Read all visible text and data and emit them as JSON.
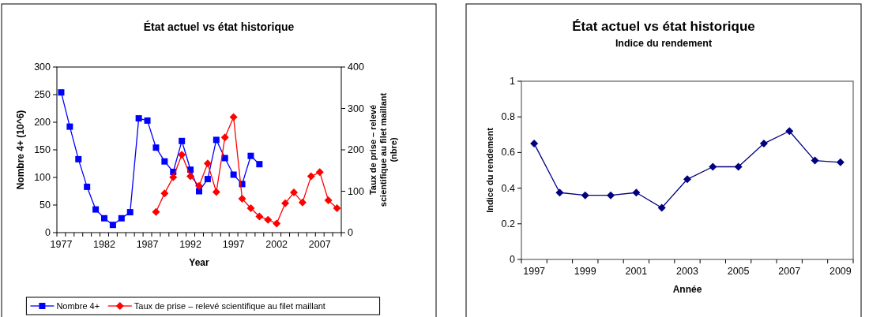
{
  "chart_data": [
    {
      "type": "line",
      "title": "État actuel vs état historique",
      "xlabel": "Year",
      "ylabel": "Nombre 4+ (10^6)",
      "y2label": "Taux de prise – relevé scientifique au filet maillant (nbre)",
      "categories": [
        "1977",
        null,
        null,
        null,
        null,
        "1982",
        null,
        null,
        null,
        null,
        "1987",
        null,
        null,
        null,
        null,
        "1992",
        null,
        null,
        null,
        null,
        "1997",
        null,
        null,
        null,
        null,
        "2002",
        null,
        null,
        null,
        null,
        "2007",
        null,
        null
      ],
      "series": [
        {
          "name": "Nombre 4+",
          "color": "#0000ff",
          "marker": "square",
          "values": [
            254,
            192,
            133,
            83,
            42,
            26,
            14,
            26,
            37,
            207,
            203,
            154,
            129,
            110,
            166,
            114,
            75,
            97,
            168,
            135,
            105,
            88,
            139,
            124,
            null,
            null,
            null,
            null,
            null,
            null,
            null,
            null,
            null
          ]
        },
        {
          "name": "Taux de prise – relevé scientifique au filet maillant",
          "color": "#ff0000",
          "marker": "diamond",
          "axis": "y2",
          "values": [
            null,
            null,
            null,
            null,
            null,
            null,
            null,
            null,
            null,
            null,
            null,
            50,
            95,
            134,
            188,
            136,
            113,
            167,
            98,
            230,
            279,
            82,
            59,
            39,
            31,
            22,
            71,
            97,
            73,
            136,
            146,
            78,
            59
          ]
        }
      ],
      "ylim": [
        0,
        300
      ],
      "yticks": [
        0,
        50,
        100,
        150,
        200,
        250,
        300
      ],
      "y2lim": [
        0,
        400
      ],
      "y2ticks": [
        0,
        100,
        200,
        300,
        400
      ],
      "grid": false,
      "legend": "bottom"
    },
    {
      "type": "line",
      "title": "État actuel vs état historique",
      "subtitle": "Indice du rendement",
      "xlabel": "Année",
      "ylabel": "Indice du rendement",
      "categories": [
        "1997",
        null,
        "1999",
        null,
        "2001",
        null,
        "2003",
        null,
        "2005",
        null,
        "2007",
        null,
        "2009"
      ],
      "series": [
        {
          "color": "#000080",
          "marker": "diamond",
          "values": [
            0.65,
            0.375,
            0.36,
            0.36,
            0.375,
            0.29,
            0.45,
            0.52,
            0.52,
            0.65,
            0.72,
            0.555,
            0.545
          ]
        }
      ],
      "ylim": [
        0,
        1
      ],
      "yticks": [
        0,
        0.2,
        0.4,
        0.6,
        0.8,
        1
      ],
      "grid": false,
      "legend": false
    }
  ]
}
